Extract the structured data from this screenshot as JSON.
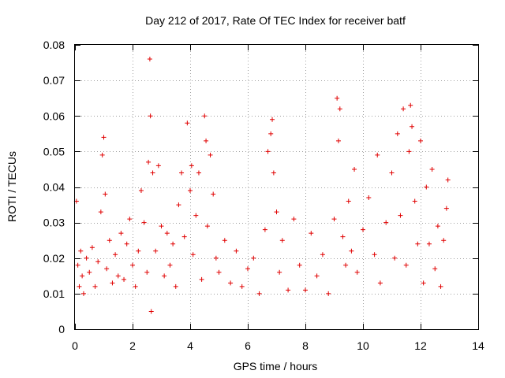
{
  "chart_data": {
    "type": "scatter",
    "title": "Day 212 of 2017, Rate Of TEC Index for receiver batf",
    "xlabel": "GPS time / hours",
    "ylabel": "ROTI / TECUs",
    "xlim": [
      0,
      14
    ],
    "ylim": [
      0,
      0.08
    ],
    "xticks": [
      "0",
      "2",
      "4",
      "6",
      "8",
      "10",
      "12",
      "14"
    ],
    "yticks": [
      "0",
      "0.01",
      "0.02",
      "0.03",
      "0.04",
      "0.05",
      "0.06",
      "0.07",
      "0.08"
    ],
    "grid": true,
    "marker": "plus",
    "color": "#e00000",
    "series": [
      {
        "x": [
          0.05,
          0.1,
          0.15,
          0.2,
          0.25,
          0.3,
          0.4,
          0.5,
          0.6,
          0.7,
          0.8,
          0.9,
          0.95,
          1.0,
          1.05,
          1.1,
          1.2,
          1.3,
          1.4,
          1.5,
          1.6,
          1.7,
          1.8,
          1.9,
          2.0,
          2.1,
          2.2,
          2.3,
          2.4,
          2.5,
          2.55,
          2.6,
          2.62,
          2.65,
          2.7,
          2.8,
          2.9,
          3.0,
          3.1,
          3.2,
          3.3,
          3.4,
          3.5,
          3.6,
          3.7,
          3.8,
          3.9,
          4.0,
          4.05,
          4.1,
          4.2,
          4.3,
          4.4,
          4.5,
          4.55,
          4.6,
          4.7,
          4.8,
          4.9,
          5.0,
          5.2,
          5.4,
          5.6,
          5.8,
          6.0,
          6.2,
          6.4,
          6.6,
          6.7,
          6.8,
          6.85,
          6.9,
          7.0,
          7.1,
          7.2,
          7.4,
          7.6,
          7.8,
          8.0,
          8.2,
          8.4,
          8.6,
          8.8,
          9.0,
          9.1,
          9.15,
          9.2,
          9.3,
          9.4,
          9.5,
          9.6,
          9.7,
          9.8,
          10.0,
          10.2,
          10.4,
          10.5,
          10.6,
          10.8,
          11.0,
          11.1,
          11.2,
          11.3,
          11.4,
          11.5,
          11.6,
          11.65,
          11.7,
          11.8,
          11.9,
          12.0,
          12.1,
          12.2,
          12.3,
          12.4,
          12.5,
          12.6,
          12.7,
          12.8,
          12.9,
          12.95
        ],
        "y": [
          0.036,
          0.018,
          0.012,
          0.022,
          0.015,
          0.01,
          0.02,
          0.016,
          0.023,
          0.012,
          0.019,
          0.033,
          0.049,
          0.054,
          0.038,
          0.017,
          0.025,
          0.013,
          0.021,
          0.015,
          0.027,
          0.014,
          0.024,
          0.031,
          0.018,
          0.012,
          0.022,
          0.039,
          0.03,
          0.016,
          0.047,
          0.076,
          0.06,
          0.005,
          0.044,
          0.022,
          0.046,
          0.029,
          0.015,
          0.027,
          0.018,
          0.024,
          0.012,
          0.035,
          0.044,
          0.026,
          0.058,
          0.039,
          0.046,
          0.021,
          0.032,
          0.044,
          0.014,
          0.06,
          0.053,
          0.029,
          0.049,
          0.038,
          0.02,
          0.016,
          0.025,
          0.013,
          0.022,
          0.012,
          0.017,
          0.02,
          0.01,
          0.028,
          0.05,
          0.055,
          0.059,
          0.044,
          0.033,
          0.016,
          0.025,
          0.011,
          0.031,
          0.018,
          0.011,
          0.027,
          0.015,
          0.021,
          0.01,
          0.031,
          0.065,
          0.053,
          0.062,
          0.026,
          0.018,
          0.036,
          0.022,
          0.045,
          0.016,
          0.028,
          0.037,
          0.021,
          0.049,
          0.013,
          0.03,
          0.044,
          0.02,
          0.055,
          0.032,
          0.062,
          0.018,
          0.05,
          0.063,
          0.057,
          0.036,
          0.024,
          0.053,
          0.013,
          0.04,
          0.024,
          0.045,
          0.017,
          0.029,
          0.012,
          0.025,
          0.034,
          0.042
        ]
      }
    ]
  }
}
